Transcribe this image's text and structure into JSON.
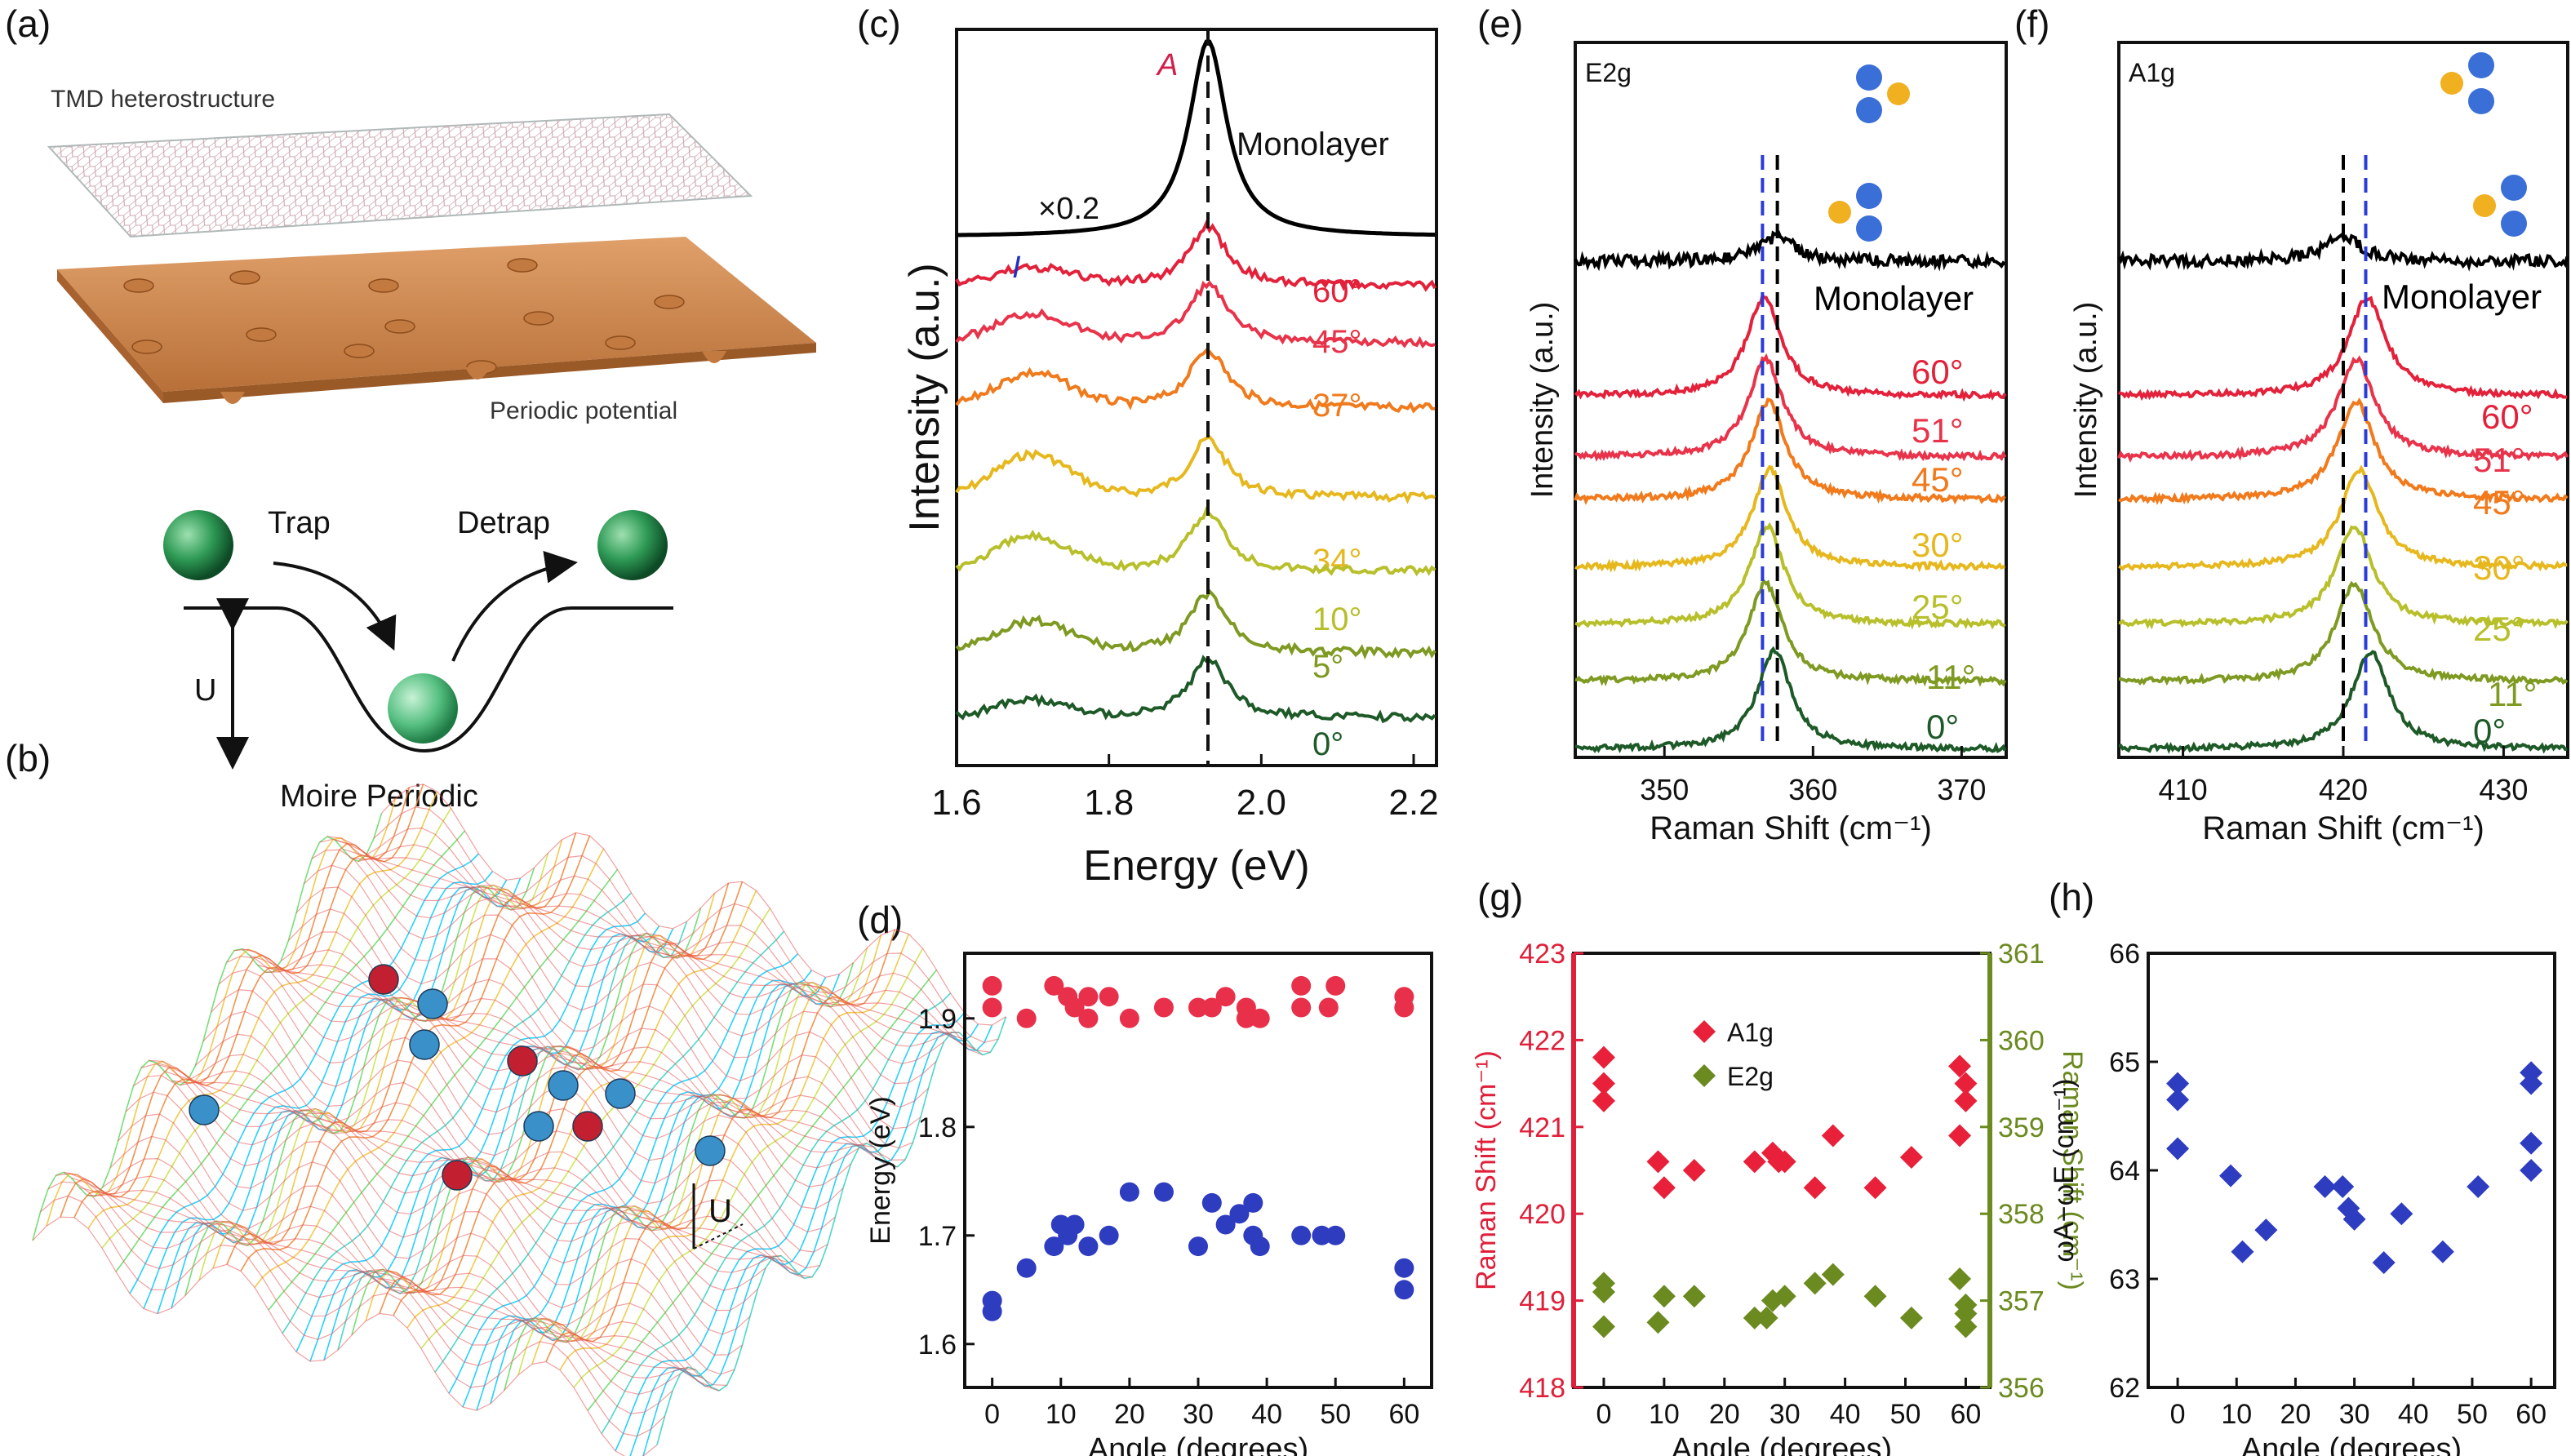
{
  "panel_labels": {
    "a": "(a)",
    "b": "(b)",
    "c": "(c)",
    "d": "(d)",
    "e": "(e)",
    "f": "(f)",
    "g": "(g)",
    "h": "(h)"
  },
  "schematic_a": {
    "top_label": "TMD heterostructure",
    "bottom_label": "Periodic potential",
    "trap": "Trap",
    "detrap": "Detrap",
    "u": "U",
    "moire": "Moire Periodic"
  },
  "schematic_b": {
    "u": "U"
  },
  "colors": {
    "monolayer": "#000000",
    "red": "#e3213a",
    "red2": "#e8334a",
    "orange": "#f07a1c",
    "gold": "#e6b81e",
    "yellowgreen": "#b7bf2a",
    "olive": "#7f9a22",
    "green": "#3f8a2e",
    "darkgreen": "#1e5a28",
    "dblue": "#3140c0",
    "pink": "#e0324b",
    "olivegreen": "#6b8a1f",
    "dash_black": "#000000",
    "dash_blue": "#2a3bd6"
  },
  "chart_data": [
    {
      "id": "c",
      "type": "line",
      "title": "",
      "xlabel": "Energy (eV)",
      "ylabel": "Intensity (a.u.)",
      "xlim": [
        1.6,
        2.23
      ],
      "xticks": [
        "1.6",
        "1.8",
        "2.0",
        "2.2"
      ],
      "annotations": {
        "A": "A",
        "I": "I",
        "scale": "×0.2"
      },
      "dashed_line_x": 1.93,
      "series": [
        {
          "name": "Monolayer",
          "label": "Monolayer"
        },
        {
          "name": "60°",
          "label": "60°"
        },
        {
          "name": "45°",
          "label": "45°"
        },
        {
          "name": "37°",
          "label": "37°"
        },
        {
          "name": "34°",
          "label": "34°"
        },
        {
          "name": "10°",
          "label": "10°"
        },
        {
          "name": "5°",
          "label": "5°"
        },
        {
          "name": "0°",
          "label": "0°"
        }
      ]
    },
    {
      "id": "e",
      "type": "line",
      "title": "E2g",
      "xlabel": "Raman Shift (cm⁻¹)",
      "ylabel": "Intensity (a.u.)",
      "xlim": [
        344,
        373
      ],
      "xticks": [
        "350",
        "360",
        "370"
      ],
      "dashed_lines_x": [
        356.6,
        357.6
      ],
      "series": [
        {
          "name": "Monolayer",
          "label": "Monolayer",
          "peak": 357.6
        },
        {
          "name": "60°",
          "label": "60°",
          "peak": 356.7
        },
        {
          "name": "51°",
          "label": "51°",
          "peak": 356.8
        },
        {
          "name": "45°",
          "label": "45°",
          "peak": 357.0
        },
        {
          "name": "30°",
          "label": "30°",
          "peak": 357.1
        },
        {
          "name": "25°",
          "label": "25°",
          "peak": 356.9
        },
        {
          "name": "11°",
          "label": "11°",
          "peak": 356.8
        },
        {
          "name": "0°",
          "label": "0°",
          "peak": 357.4
        }
      ]
    },
    {
      "id": "f",
      "type": "line",
      "title": "A1g",
      "xlabel": "Raman Shift (cm⁻¹)",
      "ylabel": "Intensity (a.u.)",
      "xlim": [
        406,
        434
      ],
      "xticks": [
        "410",
        "420",
        "430"
      ],
      "dashed_lines_x": [
        420.0,
        421.4
      ],
      "series": [
        {
          "name": "Monolayer",
          "label": "Monolayer",
          "peak": 420.0
        },
        {
          "name": "60°",
          "label": "60°",
          "peak": 421.5
        },
        {
          "name": "51°",
          "label": "51°",
          "peak": 420.8
        },
        {
          "name": "45°",
          "label": "45°",
          "peak": 420.8
        },
        {
          "name": "30°",
          "label": "30°",
          "peak": 421.0
        },
        {
          "name": "25°",
          "label": "25°",
          "peak": 420.7
        },
        {
          "name": "11°",
          "label": "11°",
          "peak": 420.7
        },
        {
          "name": "0°",
          "label": "0°",
          "peak": 421.7
        }
      ]
    },
    {
      "id": "d",
      "type": "scatter",
      "xlabel": "Angle (degrees)",
      "ylabel": "Energy (eV)",
      "xlim": [
        -4,
        64
      ],
      "ylim": [
        1.56,
        1.96
      ],
      "xticks": [
        0,
        10,
        20,
        30,
        40,
        50,
        60
      ],
      "yticks": [
        1.6,
        1.7,
        1.8,
        1.9
      ],
      "series": [
        {
          "points": [
            [
              0,
              1.93
            ],
            [
              0,
              1.91
            ],
            [
              5,
              1.9
            ],
            [
              9,
              1.93
            ],
            [
              11,
              1.92
            ],
            [
              12,
              1.91
            ],
            [
              14,
              1.92
            ],
            [
              14,
              1.9
            ],
            [
              17,
              1.92
            ],
            [
              20,
              1.9
            ],
            [
              25,
              1.91
            ],
            [
              30,
              1.91
            ],
            [
              32,
              1.91
            ],
            [
              34,
              1.92
            ],
            [
              37,
              1.91
            ],
            [
              37,
              1.9
            ],
            [
              39,
              1.9
            ],
            [
              45,
              1.93
            ],
            [
              45,
              1.91
            ],
            [
              49,
              1.91
            ],
            [
              50,
              1.93
            ],
            [
              60,
              1.92
            ],
            [
              60,
              1.91
            ]
          ]
        },
        {
          "points": [
            [
              0,
              1.64
            ],
            [
              0,
              1.63
            ],
            [
              5,
              1.67
            ],
            [
              9,
              1.69
            ],
            [
              10,
              1.71
            ],
            [
              11,
              1.7
            ],
            [
              12,
              1.71
            ],
            [
              14,
              1.69
            ],
            [
              17,
              1.7
            ],
            [
              20,
              1.74
            ],
            [
              25,
              1.74
            ],
            [
              30,
              1.69
            ],
            [
              32,
              1.73
            ],
            [
              34,
              1.71
            ],
            [
              36,
              1.72
            ],
            [
              38,
              1.7
            ],
            [
              38,
              1.73
            ],
            [
              39,
              1.69
            ],
            [
              45,
              1.7
            ],
            [
              48,
              1.7
            ],
            [
              50,
              1.7
            ],
            [
              60,
              1.67
            ],
            [
              60,
              1.65
            ]
          ]
        }
      ]
    },
    {
      "id": "g",
      "type": "scatter",
      "xlabel": "Angle (degrees)",
      "ylabel": "Raman Shift (cm⁻¹)",
      "ylabel_right": "Raman Shift (cm⁻¹)",
      "xlim": [
        -5,
        64
      ],
      "ylim": [
        418,
        423
      ],
      "ylim_right": [
        356,
        361
      ],
      "xticks": [
        0,
        10,
        20,
        30,
        40,
        50,
        60
      ],
      "yticks": [
        418,
        419,
        420,
        421,
        422,
        423
      ],
      "yticks_right": [
        356,
        357,
        358,
        359,
        360,
        361
      ],
      "legend": [
        "A1g",
        "E2g"
      ],
      "series": [
        {
          "name": "A1g",
          "axis": "left",
          "points": [
            [
              0,
              421.8
            ],
            [
              0,
              421.5
            ],
            [
              0,
              421.3
            ],
            [
              9,
              420.6
            ],
            [
              10,
              420.3
            ],
            [
              15,
              420.5
            ],
            [
              25,
              420.6
            ],
            [
              28,
              420.7
            ],
            [
              29,
              420.6
            ],
            [
              30,
              420.6
            ],
            [
              35,
              420.3
            ],
            [
              38,
              420.9
            ],
            [
              45,
              420.3
            ],
            [
              51,
              420.65
            ],
            [
              59,
              421.7
            ],
            [
              60,
              421.5
            ],
            [
              60,
              421.3
            ],
            [
              59,
              420.9
            ]
          ]
        },
        {
          "name": "E2g",
          "axis": "right",
          "points": [
            [
              0,
              357.2
            ],
            [
              0,
              357.1
            ],
            [
              0,
              356.7
            ],
            [
              9,
              356.75
            ],
            [
              10,
              357.05
            ],
            [
              15,
              357.05
            ],
            [
              25,
              356.8
            ],
            [
              27,
              356.8
            ],
            [
              28,
              357.0
            ],
            [
              30,
              357.05
            ],
            [
              35,
              357.2
            ],
            [
              38,
              357.3
            ],
            [
              45,
              357.05
            ],
            [
              51,
              356.8
            ],
            [
              59,
              357.25
            ],
            [
              60,
              356.95
            ],
            [
              60,
              356.7
            ],
            [
              60,
              356.85
            ]
          ]
        }
      ]
    },
    {
      "id": "h",
      "type": "scatter",
      "xlabel": "Angle (degrees)",
      "ylabel": "ωA−ωE (cm⁻¹)",
      "xlim": [
        -5,
        64
      ],
      "ylim": [
        62,
        66
      ],
      "xticks": [
        0,
        10,
        20,
        30,
        40,
        50,
        60
      ],
      "yticks": [
        62,
        63,
        64,
        65,
        66
      ],
      "series": [
        {
          "points": [
            [
              0,
              64.8
            ],
            [
              0,
              64.65
            ],
            [
              0,
              64.2
            ],
            [
              9,
              63.95
            ],
            [
              11,
              63.25
            ],
            [
              15,
              63.45
            ],
            [
              25,
              63.85
            ],
            [
              28,
              63.85
            ],
            [
              29,
              63.65
            ],
            [
              30,
              63.55
            ],
            [
              35,
              63.15
            ],
            [
              38,
              63.6
            ],
            [
              45,
              63.25
            ],
            [
              51,
              63.85
            ],
            [
              60,
              64.9
            ],
            [
              60,
              64.8
            ],
            [
              60,
              64.25
            ],
            [
              60,
              64.0
            ]
          ]
        }
      ]
    }
  ]
}
